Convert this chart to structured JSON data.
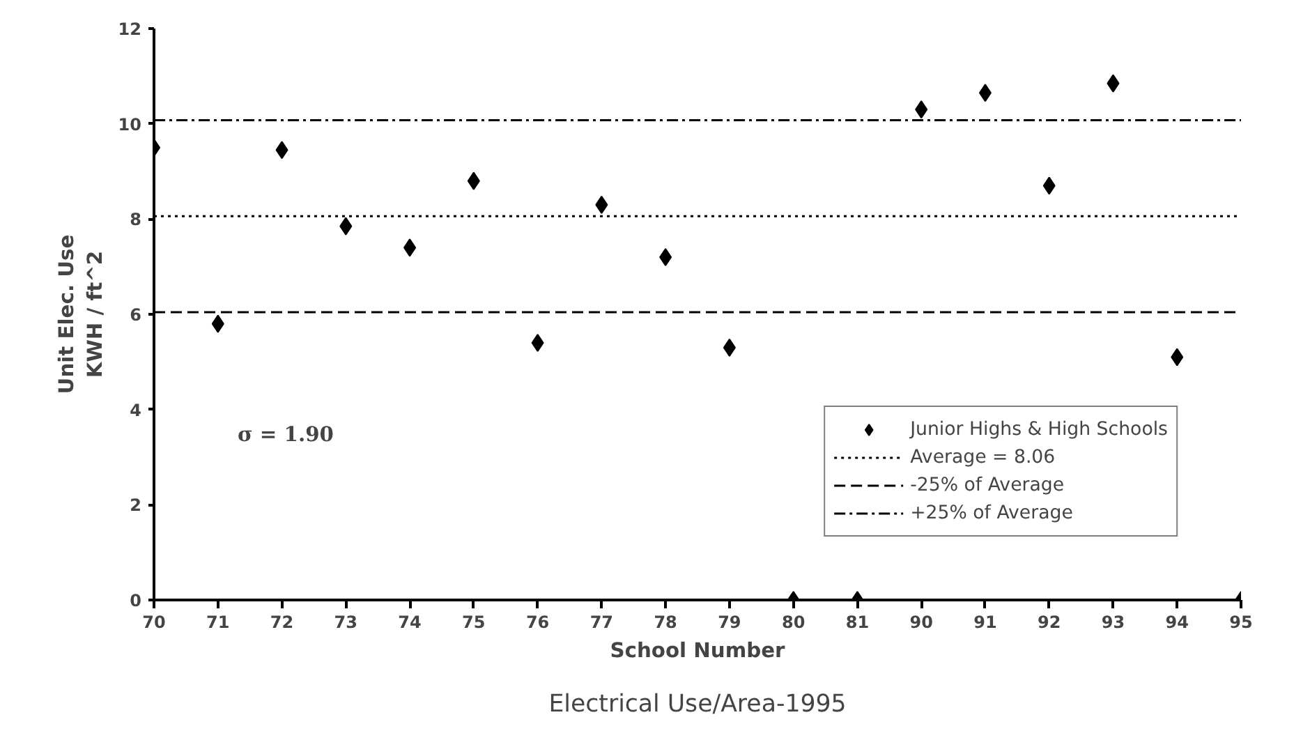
{
  "chart_data": {
    "type": "scatter",
    "title": "Electrical Use/Area-1995",
    "xlabel": "School Number",
    "ylabel": "Unit Elec. Use\nKWH / ft^2",
    "categories": [
      "70",
      "71",
      "72",
      "73",
      "74",
      "75",
      "76",
      "77",
      "78",
      "79",
      "80",
      "81",
      "90",
      "91",
      "92",
      "93",
      "94",
      "95"
    ],
    "series": [
      {
        "name": "Junior Highs & High Schools",
        "color": "#000000",
        "values": [
          9.5,
          5.8,
          9.45,
          7.85,
          7.4,
          8.8,
          5.4,
          8.3,
          7.2,
          5.3,
          0,
          0,
          10.3,
          10.65,
          8.7,
          10.85,
          5.1,
          0
        ]
      }
    ],
    "ylim": [
      0,
      12
    ],
    "yticks": [
      0,
      2,
      4,
      6,
      8,
      10,
      12
    ],
    "marker": "diamond",
    "grid": false,
    "legend": "bottom right",
    "ref_lines": [
      {
        "axis": "y",
        "value": 8.06,
        "label": "Average = 8.06",
        "line_style": "dotted",
        "color": "#000000"
      },
      {
        "axis": "y",
        "value": 6.045,
        "label": "-25% of Average",
        "line_style": "dashed",
        "color": "#000000"
      },
      {
        "axis": "y",
        "value": 10.075,
        "label": "+25% of Average",
        "line_style": "dashdot",
        "color": "#000000"
      }
    ],
    "annotations": [
      "σ = 1.90"
    ]
  }
}
